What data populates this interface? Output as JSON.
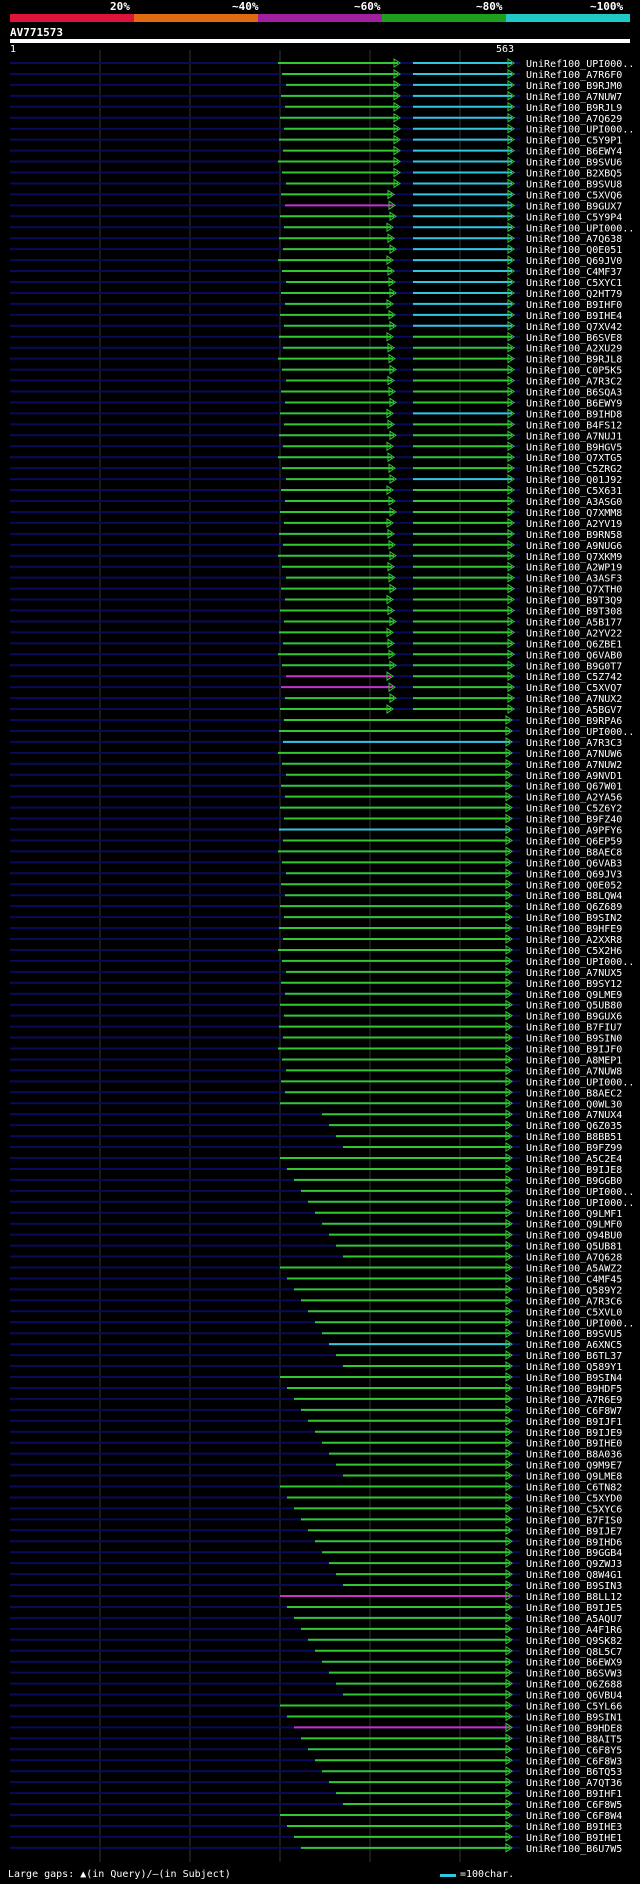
{
  "query": {
    "name": "AV771573",
    "start": "1",
    "end": "563"
  },
  "legend": {
    "labels": [
      "20%",
      "~40%",
      "~60%",
      "~80%",
      "~100%"
    ],
    "colors": [
      "#dc143c",
      "#e06a10",
      "#a020a0",
      "#1ea01e",
      "#20c8c8"
    ]
  },
  "colors": {
    "green": "#32c832",
    "cyan": "#32c8dc",
    "magenta": "#c832c8",
    "track": "#0a0a5a"
  },
  "hit_ids": [
    "UniRef100_UPI000..",
    "UniRef100_A7R6F0",
    "UniRef100_B9RJM0",
    "UniRef100_A7NUW7",
    "UniRef100_B9RJL9",
    "UniRef100_A7Q629",
    "UniRef100_UPI000..",
    "UniRef100_C5Y9P1",
    "UniRef100_B6EWY4",
    "UniRef100_B9SVU6",
    "UniRef100_B2XBQ5",
    "UniRef100_B9SVU8",
    "UniRef100_C5XVQ6",
    "UniRef100_B9GUX7",
    "UniRef100_C5Y9P4",
    "UniRef100_UPI000..",
    "UniRef100_A7Q638",
    "UniRef100_Q0E051",
    "UniRef100_Q69JV0",
    "UniRef100_C4MF37",
    "UniRef100_C5XYC1",
    "UniRef100_Q2HT79",
    "UniRef100_B9IHF0",
    "UniRef100_B9IHE4",
    "UniRef100_Q7XV42",
    "UniRef100_B6SVE8",
    "UniRef100_A2XU29",
    "UniRef100_B9RJL8",
    "UniRef100_C0P5K5",
    "UniRef100_A7R3C2",
    "UniRef100_B6SQA3",
    "UniRef100_B6EWY9",
    "UniRef100_B9IHD8",
    "UniRef100_B4FS12",
    "UniRef100_A7NUJ1",
    "UniRef100_B9HGV5",
    "UniRef100_Q7XTG5",
    "UniRef100_C5ZRG2",
    "UniRef100_Q01J92",
    "UniRef100_C5X631",
    "UniRef100_A3ASG0",
    "UniRef100_Q7XMM8",
    "UniRef100_A2YV19",
    "UniRef100_B9RN58",
    "UniRef100_A9NUG6",
    "UniRef100_Q7XKM9",
    "UniRef100_A2WP19",
    "UniRef100_A3ASF3",
    "UniRef100_Q7XTH0",
    "UniRef100_B9T3Q9",
    "UniRef100_B9T308",
    "UniRef100_A5B177",
    "UniRef100_A2YV22",
    "UniRef100_Q6ZBE1",
    "UniRef100_Q6VAB0",
    "UniRef100_B9G0T7",
    "UniRef100_C5Z742",
    "UniRef100_C5XVQ7",
    "UniRef100_A7NUX2",
    "UniRef100_A5BGV7",
    "UniRef100_B9RPA6",
    "UniRef100_UPI000..",
    "UniRef100_A7R3C3",
    "UniRef100_A7NUW6",
    "UniRef100_A7NUW2",
    "UniRef100_A9NVD1",
    "UniRef100_Q67W01",
    "UniRef100_A2YA56",
    "UniRef100_C5Z6Y2",
    "UniRef100_B9FZ40",
    "UniRef100_A9PFY6",
    "UniRef100_Q6EP59",
    "UniRef100_B8AEC8",
    "UniRef100_Q6VAB3",
    "UniRef100_Q69JV3",
    "UniRef100_Q0E052",
    "UniRef100_B8LQW4",
    "UniRef100_Q6Z689",
    "UniRef100_B9SIN2",
    "UniRef100_B9HFE9",
    "UniRef100_A2XXR8",
    "UniRef100_C5X2H6",
    "UniRef100_UPI000..",
    "UniRef100_A7NUX5",
    "UniRef100_B9SY12",
    "UniRef100_Q9LME9",
    "UniRef100_Q5UB80",
    "UniRef100_B9GUX6",
    "UniRef100_B7FIU7",
    "UniRef100_B9SIN0",
    "UniRef100_B9IJF0",
    "UniRef100_A8MEP1",
    "UniRef100_A7NUW8",
    "UniRef100_UPI000..",
    "UniRef100_B8AEC2",
    "UniRef100_Q0WL30",
    "UniRef100_A7NUX4",
    "UniRef100_Q6Z035",
    "UniRef100_B8BB51",
    "UniRef100_B9FZ99",
    "UniRef100_A5C2E4",
    "UniRef100_B9IJE8",
    "UniRef100_B9GGB0",
    "UniRef100_UPI000..",
    "UniRef100_UPI000..",
    "UniRef100_Q9LMF1",
    "UniRef100_Q9LMF0",
    "UniRef100_Q94BU0",
    "UniRef100_Q5UB81",
    "UniRef100_A7Q628",
    "UniRef100_A5AWZ2",
    "UniRef100_C4MF45",
    "UniRef100_Q589Y2",
    "UniRef100_A7R3C6",
    "UniRef100_C5XVL0",
    "UniRef100_UPI000..",
    "UniRef100_B9SVU5",
    "UniRef100_A6XNC5",
    "UniRef100_B6TL37",
    "UniRef100_Q589Y1",
    "UniRef100_B9SIN4",
    "UniRef100_B9HDF5",
    "UniRef100_A7R6E9",
    "UniRef100_C6F8W7",
    "UniRef100_B9IJF1",
    "UniRef100_B9IJE9",
    "UniRef100_B9IHE0",
    "UniRef100_B8A036",
    "UniRef100_Q9M9E7",
    "UniRef100_Q9LME8",
    "UniRef100_C6TN82",
    "UniRef100_C5XYD0",
    "UniRef100_C5XYC6",
    "UniRef100_B7FIS0",
    "UniRef100_B9IJE7",
    "UniRef100_B9IHD6",
    "UniRef100_B9GGB4",
    "UniRef100_Q9ZWJ3",
    "UniRef100_Q8W4G1",
    "UniRef100_B9SIN3",
    "UniRef100_B8LL12",
    "UniRef100_B9IJE5",
    "UniRef100_A5AQU7",
    "UniRef100_A4F1R6",
    "UniRef100_Q9SK82",
    "UniRef100_Q8L5C7",
    "UniRef100_B6EWX9",
    "UniRef100_B6SVW3",
    "UniRef100_Q6Z688",
    "UniRef100_Q6VBU4",
    "UniRef100_C5YL66",
    "UniRef100_B9SIN1",
    "UniRef100_B9HDE8",
    "UniRef100_B8AIT5",
    "UniRef100_C6F8Y5",
    "UniRef100_C6F8W3",
    "UniRef100_B6TQ53",
    "UniRef100_A7QT36",
    "UniRef100_B9IHF1",
    "UniRef100_C6F8W5",
    "UniRef100_C6F8W4",
    "UniRef100_B9IHE3",
    "UniRef100_B9IHE1",
    "UniRef100_B6U7W5"
  ],
  "footer": {
    "gaps": "Large gaps: ▲(in Query)/‒(in Subject)",
    "scale": "=100char."
  }
}
